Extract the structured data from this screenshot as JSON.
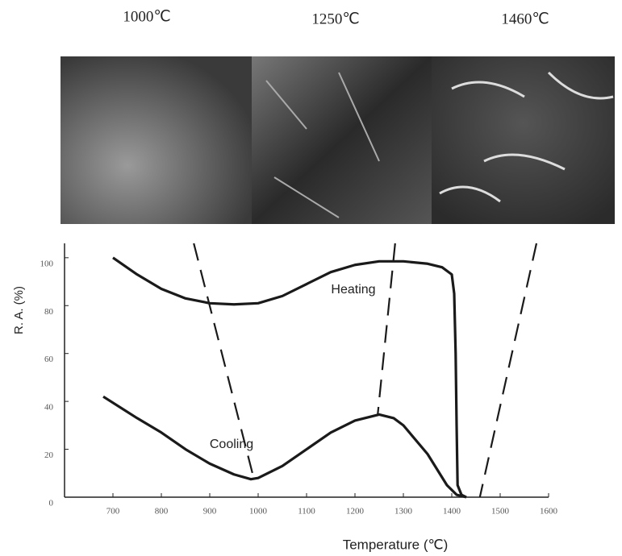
{
  "chart_data": {
    "type": "line",
    "panels": [
      "1000℃",
      "1250℃",
      "1460℃"
    ],
    "x_label": "Temperature (℃)",
    "y_label": "R. A. (%)",
    "xlim": [
      600,
      1600
    ],
    "ylim": [
      0,
      106
    ],
    "xticks": [
      700,
      800,
      900,
      1000,
      1100,
      1200,
      1300,
      1400,
      1500,
      1600
    ],
    "yticks": [
      0,
      20,
      40,
      60,
      80,
      100
    ],
    "annotations": [
      "Heating",
      "Cooling"
    ],
    "series": [
      {
        "name": "Heating",
        "color": "#1a1a1a",
        "x": [
          700,
          750,
          800,
          850,
          900,
          950,
          1000,
          1050,
          1100,
          1150,
          1200,
          1250,
          1300,
          1350,
          1380,
          1400,
          1405,
          1408,
          1410,
          1412,
          1420,
          1430
        ],
        "values": [
          100,
          93,
          87,
          83,
          81,
          80.5,
          81,
          84,
          89,
          94,
          97,
          98.5,
          98.5,
          97.5,
          96,
          93,
          85,
          60,
          30,
          5,
          1,
          0
        ]
      },
      {
        "name": "Cooling",
        "color": "#1a1a1a",
        "x": [
          680,
          750,
          800,
          850,
          900,
          950,
          985,
          1000,
          1050,
          1100,
          1150,
          1200,
          1250,
          1280,
          1300,
          1350,
          1390,
          1410,
          1430
        ],
        "values": [
          42,
          33,
          27,
          20,
          14,
          9.5,
          7.5,
          8,
          13,
          20,
          27,
          32,
          34.5,
          33,
          30,
          18,
          5,
          1,
          0
        ]
      }
    ],
    "guides": [
      {
        "x": [
          867,
          992
        ],
        "y": [
          106,
          7
        ]
      },
      {
        "x": [
          1283,
          1247
        ],
        "y": [
          106,
          34.5
        ]
      },
      {
        "x": [
          1575,
          1458
        ],
        "y": [
          106,
          0
        ]
      }
    ]
  }
}
